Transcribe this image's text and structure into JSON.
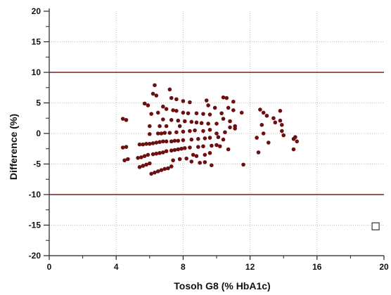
{
  "chart_data": {
    "type": "scatter",
    "title": "",
    "xlabel": "Tosoh G8  (% HbA1c)",
    "ylabel": "Difference  (%)",
    "xlim": [
      0,
      20
    ],
    "ylim": [
      -20,
      20
    ],
    "x_ticks": [
      0,
      4,
      8,
      12,
      16,
      20
    ],
    "y_ticks": [
      -20,
      -15,
      -10,
      -5,
      0,
      5,
      10,
      15,
      20
    ],
    "x_minor_ticks": [
      2,
      6,
      10,
      14,
      18
    ],
    "y_minor_ticks": [
      -17.5,
      -12.5,
      -7.5,
      -2.5,
      2.5,
      7.5,
      12.5,
      17.5
    ],
    "grid": {
      "vertical": [
        4,
        8,
        12,
        16
      ],
      "horizontal": [
        -15,
        -5,
        0,
        5,
        15
      ],
      "style": "dotted"
    },
    "reference_lines": [
      10,
      -10
    ],
    "colors": {
      "points": "#6b0f0f",
      "reference_line": "#7a2020",
      "grid": "#bdbdbd",
      "axis": "#222222"
    },
    "series": [
      {
        "points": [
          [
            4.4,
            2.4
          ],
          [
            4.6,
            2.2
          ],
          [
            4.4,
            -2.3
          ],
          [
            4.6,
            -2.2
          ],
          [
            4.5,
            -4.4
          ],
          [
            4.7,
            -4.2
          ],
          [
            5.4,
            -1.8
          ],
          [
            5.6,
            -1.8
          ],
          [
            5.8,
            -1.7
          ],
          [
            6.0,
            -1.7
          ],
          [
            5.3,
            -4.0
          ],
          [
            5.5,
            -3.9
          ],
          [
            5.7,
            -3.7
          ],
          [
            5.9,
            -3.5
          ],
          [
            5.4,
            -5.5
          ],
          [
            5.6,
            -5.3
          ],
          [
            5.8,
            -5.1
          ],
          [
            6.0,
            -4.9
          ],
          [
            5.7,
            4.9
          ],
          [
            5.9,
            4.6
          ],
          [
            6.0,
            1.2
          ],
          [
            6.1,
            3.2
          ],
          [
            6.0,
            -0.1
          ],
          [
            6.2,
            6.5
          ],
          [
            6.3,
            7.9
          ],
          [
            6.4,
            6.2
          ],
          [
            6.5,
            3.4
          ],
          [
            6.6,
            1.2
          ],
          [
            6.2,
            -1.6
          ],
          [
            6.4,
            -1.5
          ],
          [
            6.6,
            -1.4
          ],
          [
            6.8,
            -1.3
          ],
          [
            6.2,
            -3.4
          ],
          [
            6.4,
            -3.3
          ],
          [
            6.6,
            -3.2
          ],
          [
            6.8,
            -3.1
          ],
          [
            6.1,
            -6.6
          ],
          [
            6.3,
            -6.4
          ],
          [
            6.5,
            -6.2
          ],
          [
            6.7,
            -6.0
          ],
          [
            6.9,
            -5.8
          ],
          [
            6.5,
            0.0
          ],
          [
            6.7,
            0.0
          ],
          [
            6.9,
            0.1
          ],
          [
            6.8,
            2.3
          ],
          [
            6.8,
            4.4
          ],
          [
            7.0,
            4.0
          ],
          [
            7.0,
            1.2
          ],
          [
            7.0,
            -1.3
          ],
          [
            7.0,
            -2.9
          ],
          [
            7.1,
            -5.7
          ],
          [
            7.2,
            7.2
          ],
          [
            7.3,
            5.8
          ],
          [
            7.4,
            3.8
          ],
          [
            7.3,
            2.2
          ],
          [
            7.2,
            0.1
          ],
          [
            7.3,
            -1.3
          ],
          [
            7.5,
            -1.2
          ],
          [
            7.3,
            -2.8
          ],
          [
            7.5,
            -2.7
          ],
          [
            7.4,
            -4.4
          ],
          [
            7.3,
            -5.4
          ],
          [
            7.6,
            5.6
          ],
          [
            7.6,
            3.7
          ],
          [
            7.7,
            2.1
          ],
          [
            7.6,
            0.2
          ],
          [
            7.8,
            1.2
          ],
          [
            7.7,
            -1.2
          ],
          [
            7.7,
            -2.6
          ],
          [
            7.9,
            -2.5
          ],
          [
            7.8,
            -4.2
          ],
          [
            8.0,
            5.3
          ],
          [
            8.0,
            3.4
          ],
          [
            8.1,
            2.0
          ],
          [
            8.0,
            0.3
          ],
          [
            8.0,
            -1.1
          ],
          [
            8.1,
            -2.4
          ],
          [
            8.2,
            -4.1
          ],
          [
            8.4,
            5.1
          ],
          [
            8.3,
            3.3
          ],
          [
            8.5,
            1.9
          ],
          [
            8.4,
            0.4
          ],
          [
            8.5,
            -1.0
          ],
          [
            8.4,
            -2.3
          ],
          [
            8.6,
            -3.5
          ],
          [
            8.5,
            -4.6
          ],
          [
            8.8,
            3.3
          ],
          [
            8.8,
            1.8
          ],
          [
            8.7,
            0.5
          ],
          [
            8.9,
            -0.9
          ],
          [
            8.9,
            -2.2
          ],
          [
            8.8,
            -3.7
          ],
          [
            9.0,
            -4.8
          ],
          [
            9.2,
            3.2
          ],
          [
            9.1,
            1.7
          ],
          [
            9.2,
            0.4
          ],
          [
            9.3,
            -0.8
          ],
          [
            9.2,
            -2.1
          ],
          [
            9.3,
            -3.5
          ],
          [
            9.3,
            -4.7
          ],
          [
            9.4,
            5.4
          ],
          [
            9.5,
            4.6
          ],
          [
            9.6,
            3.1
          ],
          [
            9.5,
            1.6
          ],
          [
            9.6,
            0.6
          ],
          [
            9.6,
            -0.7
          ],
          [
            9.7,
            -2.0
          ],
          [
            9.6,
            -3.2
          ],
          [
            9.7,
            -5.2
          ],
          [
            9.9,
            4.2
          ],
          [
            10.0,
            1.6
          ],
          [
            10.0,
            0.0
          ],
          [
            10.1,
            -0.6
          ],
          [
            10.0,
            -1.9
          ],
          [
            10.2,
            -2.1
          ],
          [
            10.4,
            5.9
          ],
          [
            10.3,
            3.3
          ],
          [
            10.4,
            2.4
          ],
          [
            10.5,
            0.2
          ],
          [
            10.4,
            -1.0
          ],
          [
            10.6,
            5.8
          ],
          [
            10.7,
            4.2
          ],
          [
            10.8,
            2.0
          ],
          [
            10.8,
            1.0
          ],
          [
            10.7,
            -2.6
          ],
          [
            11.0,
            5.2
          ],
          [
            11.0,
            3.8
          ],
          [
            11.1,
            1.2
          ],
          [
            11.1,
            0.8
          ],
          [
            11.5,
            3.4
          ],
          [
            11.6,
            -5.1
          ],
          [
            12.4,
            -0.7
          ],
          [
            12.5,
            -3.1
          ],
          [
            12.6,
            3.9
          ],
          [
            12.8,
            3.4
          ],
          [
            12.7,
            1.4
          ],
          [
            12.8,
            0.0
          ],
          [
            13.0,
            2.9
          ],
          [
            13.1,
            -1.5
          ],
          [
            13.4,
            2.5
          ],
          [
            13.5,
            1.8
          ],
          [
            13.8,
            3.7
          ],
          [
            13.8,
            2.1
          ],
          [
            13.9,
            1.4
          ],
          [
            13.9,
            0.4
          ],
          [
            14.0,
            -0.3
          ],
          [
            14.6,
            -0.9
          ],
          [
            14.6,
            -2.6
          ],
          [
            14.7,
            -0.6
          ],
          [
            14.8,
            -1.3
          ]
        ]
      }
    ],
    "legend_marker": {
      "shape": "open-square",
      "x": 19.5,
      "y": -15.2
    }
  }
}
